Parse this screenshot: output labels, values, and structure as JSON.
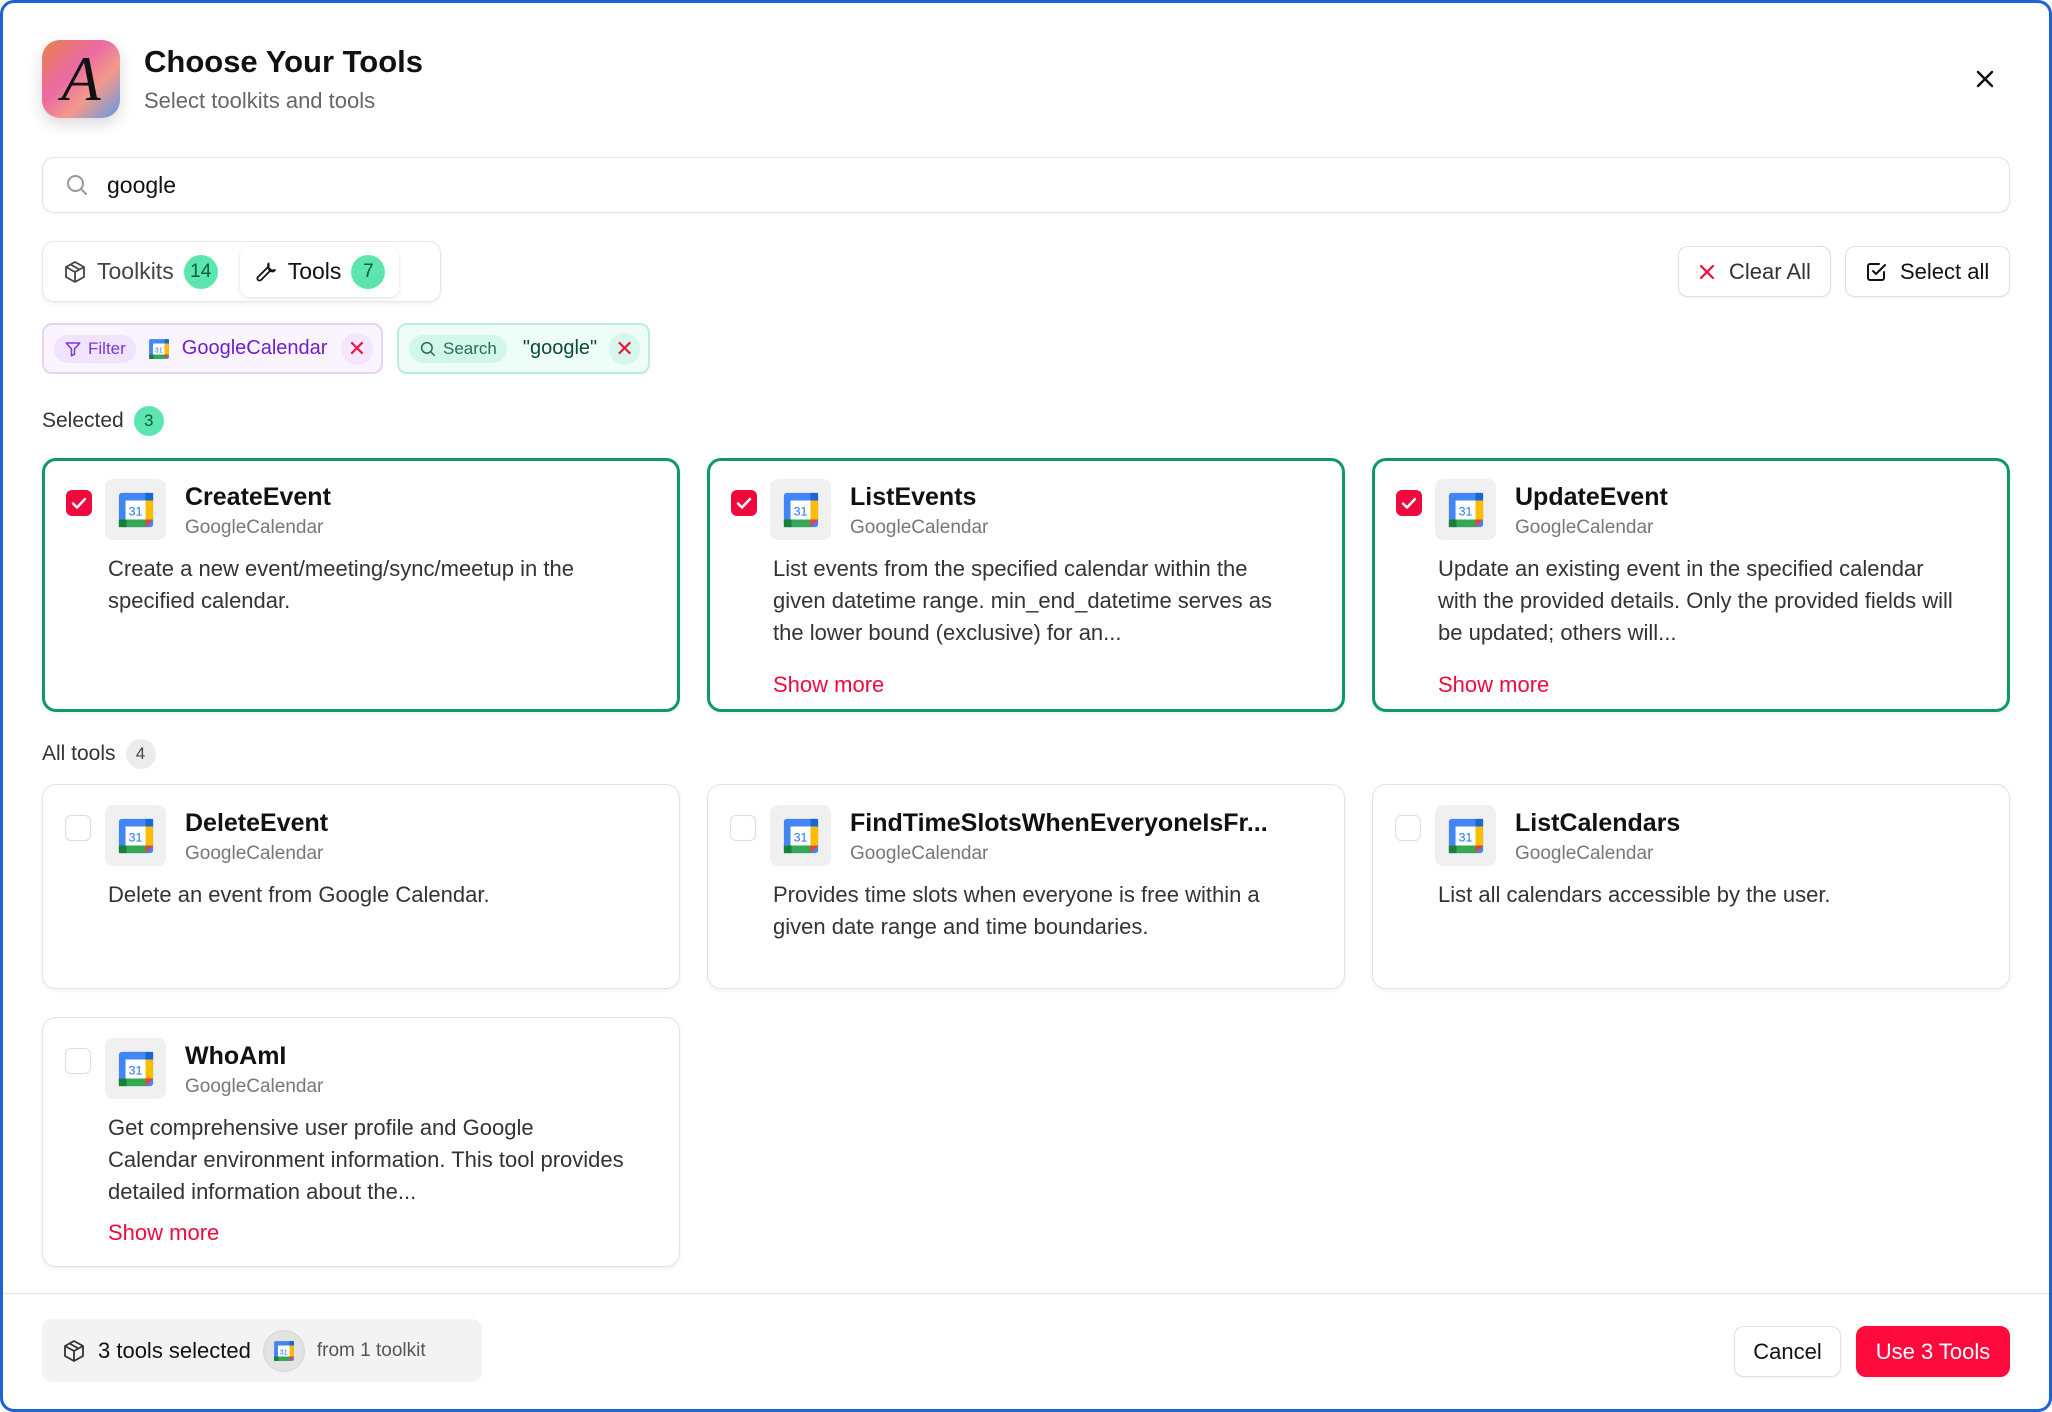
{
  "header": {
    "logo_letter": "A",
    "title": "Choose Your Tools",
    "subtitle": "Select toolkits and tools"
  },
  "search": {
    "value": "google",
    "placeholder": ""
  },
  "tabs": [
    {
      "label": "Toolkits",
      "count": "14",
      "icon": "package-icon"
    },
    {
      "label": "Tools",
      "count": "7",
      "icon": "wrench-icon",
      "active": true
    }
  ],
  "actions": {
    "clear_all": "Clear All",
    "select_all": "Select all"
  },
  "filters": {
    "filter_label": "Filter",
    "filter_value": "GoogleCalendar",
    "search_label": "Search",
    "search_value": "\"google\""
  },
  "selected": {
    "label": "Selected",
    "count": "3",
    "items": [
      {
        "title": "CreateEvent",
        "toolkit": "GoogleCalendar",
        "desc": "Create a new event/meeting/sync/meetup in the specified calendar.",
        "more": ""
      },
      {
        "title": "ListEvents",
        "toolkit": "GoogleCalendar",
        "desc": "List events from the specified calendar within the given datetime range. min_end_datetime serves as the lower bound (exclusive) for an...",
        "more": "Show more"
      },
      {
        "title": "UpdateEvent",
        "toolkit": "GoogleCalendar",
        "desc": "Update an existing event in the specified calendar with the provided details. Only the provided fields will be updated; others will...",
        "more": "Show more"
      }
    ]
  },
  "all": {
    "label": "All tools",
    "count": "4",
    "items": [
      {
        "title": "DeleteEvent",
        "toolkit": "GoogleCalendar",
        "desc": "Delete an event from Google Calendar.",
        "more": ""
      },
      {
        "title": "FindTimeSlotsWhenEveryoneIsFr...",
        "toolkit": "GoogleCalendar",
        "desc": "Provides time slots when everyone is free within a given date range and time boundaries.",
        "more": ""
      },
      {
        "title": "ListCalendars",
        "toolkit": "GoogleCalendar",
        "desc": "List all calendars accessible by the user.",
        "more": ""
      },
      {
        "title": "WhoAmI",
        "toolkit": "GoogleCalendar",
        "desc": "Get comprehensive user profile and Google Calendar environment information. This tool provides detailed information about the...",
        "more": "Show more"
      }
    ]
  },
  "footer": {
    "selected_text": "3 tools selected",
    "toolkit_text": "from 1 toolkit",
    "cancel": "Cancel",
    "confirm": "Use 3 Tools"
  },
  "colors": {
    "accent": "#ff0a3c",
    "selected_border": "#0d9a63",
    "badge": "#5de5b0",
    "window_border": "#1b63d6"
  }
}
